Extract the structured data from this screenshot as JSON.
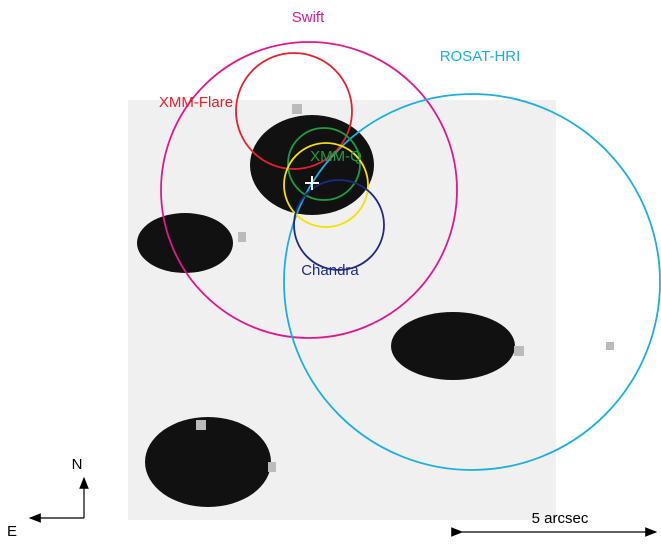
{
  "labels": {
    "swift": "Swift",
    "rosat": "ROSAT-HRI",
    "xmm_flare": "XMM-Flare",
    "xmm_q": "XMM-Q",
    "chandra": "Chandra"
  },
  "compass": {
    "north": "N",
    "east": "E"
  },
  "scale_bar": "5 arcsec"
}
